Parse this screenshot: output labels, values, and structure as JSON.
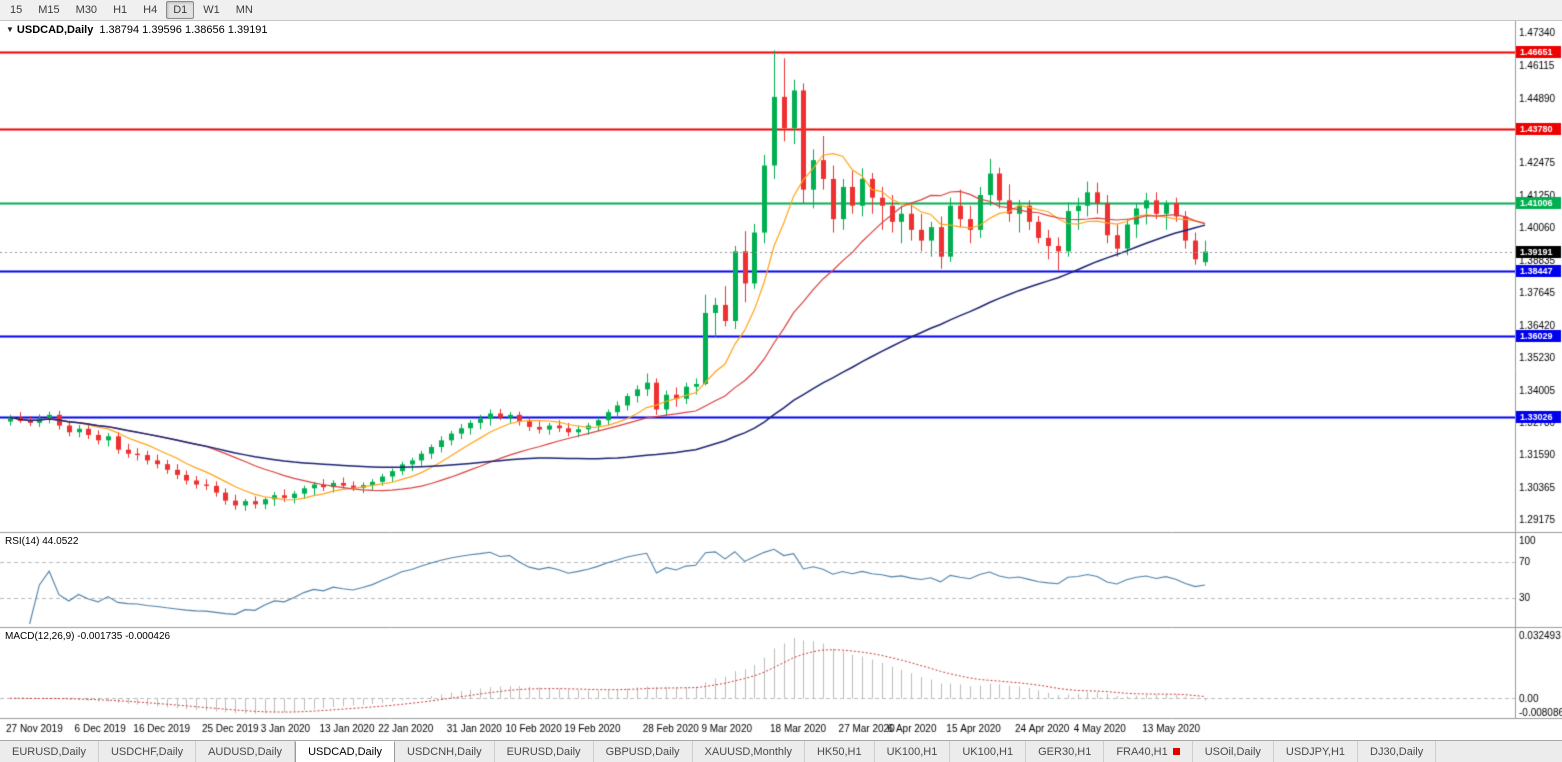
{
  "toolbar": {
    "timeframes": [
      "15",
      "M15",
      "M30",
      "H1",
      "H4",
      "D1",
      "W1",
      "MN"
    ],
    "active": "D1"
  },
  "title": {
    "collapse_icon": "▼",
    "symbol": "USDCAD,Daily",
    "ohlc": "1.38794 1.39596 1.38656 1.39191"
  },
  "indicators": {
    "rsi": {
      "label": "RSI(14) 44.0522",
      "levels": [
        70,
        30
      ],
      "axis_labels": [
        "100",
        "70",
        "30"
      ],
      "range": [
        0,
        100
      ]
    },
    "macd": {
      "label": "MACD(12,26,9) -0.001735 -0.000426",
      "axis_max": 0.032493,
      "axis_min": -0.008086,
      "axis_labels": [
        "0.032493",
        "0.00",
        "-0.008086"
      ]
    }
  },
  "price_axis": {
    "max": 1.4779,
    "min": 1.2873,
    "ticks": [
      "1.47340",
      "1.46115",
      "1.44890",
      "1.43665",
      "1.42475",
      "1.41250",
      "1.40060",
      "1.38835",
      "1.37645",
      "1.36420",
      "1.35230",
      "1.34005",
      "1.32780",
      "1.31590",
      "1.30365",
      "1.29175"
    ]
  },
  "levels": [
    {
      "price": 1.46651,
      "label": "1.46651",
      "color": "#ee0000"
    },
    {
      "price": 1.4378,
      "label": "1.43780",
      "color": "#ee0000"
    },
    {
      "price": 1.41006,
      "label": "1.41006",
      "color": "#00b050"
    },
    {
      "price": 1.38447,
      "label": "1.38447",
      "color": "#0000ee"
    },
    {
      "price": 1.36029,
      "label": "1.36029",
      "color": "#0000ee"
    },
    {
      "price": 1.33026,
      "label": "1.33026",
      "color": "#0000ee"
    }
  ],
  "current_price": {
    "value": 1.39191,
    "label": "1.39191",
    "badge_color": "#000000"
  },
  "colors": {
    "bull": "#00b050",
    "bear": "#ee3030",
    "ma_fast": "#ffa31a",
    "ma_mid": "#d94343",
    "ma_slow": "#1a2370",
    "rsi": "#4f81a8",
    "macd_hist": "#bdbdbd",
    "macd_signal": "#cc3a3a",
    "axis_text": "#000000",
    "grid": "#bbbbbb",
    "separator": "#9a9a9a"
  },
  "chart_data": {
    "type": "candlestick",
    "symbol": "USDCAD",
    "timeframe": "Daily",
    "ohlc": [
      [
        1.3285,
        1.331,
        1.327,
        1.33
      ],
      [
        1.33,
        1.332,
        1.328,
        1.3287
      ],
      [
        1.3287,
        1.3305,
        1.3268,
        1.328
      ],
      [
        1.328,
        1.3312,
        1.3265,
        1.3296
      ],
      [
        1.3296,
        1.3322,
        1.3278,
        1.331
      ],
      [
        1.331,
        1.3325,
        1.3255,
        1.327
      ],
      [
        1.327,
        1.3288,
        1.323,
        1.3245
      ],
      [
        1.3245,
        1.3272,
        1.3226,
        1.3258
      ],
      [
        1.3258,
        1.3272,
        1.322,
        1.3235
      ],
      [
        1.3235,
        1.3252,
        1.32,
        1.3215
      ],
      [
        1.3215,
        1.3242,
        1.3192,
        1.323
      ],
      [
        1.323,
        1.3246,
        1.3165,
        1.318
      ],
      [
        1.318,
        1.3202,
        1.315,
        1.3165
      ],
      [
        1.3165,
        1.3186,
        1.314,
        1.316
      ],
      [
        1.316,
        1.3176,
        1.3125,
        1.314
      ],
      [
        1.314,
        1.3162,
        1.311,
        1.3126
      ],
      [
        1.3126,
        1.3142,
        1.309,
        1.3105
      ],
      [
        1.3105,
        1.3126,
        1.307,
        1.3086
      ],
      [
        1.3086,
        1.3102,
        1.305,
        1.3065
      ],
      [
        1.3065,
        1.3082,
        1.3035,
        1.305
      ],
      [
        1.305,
        1.307,
        1.303,
        1.3045
      ],
      [
        1.3045,
        1.3062,
        1.3005,
        1.302
      ],
      [
        1.302,
        1.3036,
        1.2975,
        1.299
      ],
      [
        1.299,
        1.3012,
        1.2956,
        1.2972
      ],
      [
        1.2972,
        1.2996,
        1.2952,
        1.2988
      ],
      [
        1.2988,
        1.3006,
        1.296,
        1.2976
      ],
      [
        1.2976,
        1.3002,
        1.2958,
        1.2995
      ],
      [
        1.2995,
        1.3022,
        1.297,
        1.301
      ],
      [
        1.301,
        1.3032,
        1.2985,
        1.3
      ],
      [
        1.3,
        1.3026,
        1.298,
        1.3016
      ],
      [
        1.3016,
        1.3046,
        1.2996,
        1.3036
      ],
      [
        1.3036,
        1.306,
        1.301,
        1.305
      ],
      [
        1.305,
        1.307,
        1.3026,
        1.304
      ],
      [
        1.304,
        1.3066,
        1.302,
        1.3056
      ],
      [
        1.3056,
        1.3076,
        1.3036,
        1.3046
      ],
      [
        1.3046,
        1.3062,
        1.3026,
        1.3038
      ],
      [
        1.3038,
        1.3058,
        1.3018,
        1.3048
      ],
      [
        1.3048,
        1.307,
        1.303,
        1.306
      ],
      [
        1.306,
        1.309,
        1.3046,
        1.308
      ],
      [
        1.308,
        1.311,
        1.306,
        1.31
      ],
      [
        1.31,
        1.3135,
        1.3086,
        1.3125
      ],
      [
        1.3125,
        1.315,
        1.31,
        1.314
      ],
      [
        1.314,
        1.3176,
        1.312,
        1.3165
      ],
      [
        1.3165,
        1.32,
        1.3146,
        1.319
      ],
      [
        1.319,
        1.323,
        1.317,
        1.3215
      ],
      [
        1.3215,
        1.325,
        1.3196,
        1.324
      ],
      [
        1.324,
        1.3276,
        1.322,
        1.326
      ],
      [
        1.326,
        1.329,
        1.3236,
        1.328
      ],
      [
        1.328,
        1.331,
        1.3256,
        1.3295
      ],
      [
        1.3295,
        1.333,
        1.327,
        1.3315
      ],
      [
        1.3315,
        1.3332,
        1.329,
        1.33
      ],
      [
        1.33,
        1.332,
        1.328,
        1.331
      ],
      [
        1.331,
        1.3322,
        1.327,
        1.3286
      ],
      [
        1.3286,
        1.33,
        1.325,
        1.3265
      ],
      [
        1.3265,
        1.3286,
        1.324,
        1.3255
      ],
      [
        1.3255,
        1.328,
        1.3236,
        1.327
      ],
      [
        1.327,
        1.329,
        1.3246,
        1.326
      ],
      [
        1.326,
        1.328,
        1.323,
        1.3245
      ],
      [
        1.3245,
        1.327,
        1.3226,
        1.3256
      ],
      [
        1.3256,
        1.328,
        1.3236,
        1.327
      ],
      [
        1.327,
        1.33,
        1.325,
        1.329
      ],
      [
        1.329,
        1.333,
        1.327,
        1.332
      ],
      [
        1.332,
        1.336,
        1.33,
        1.3345
      ],
      [
        1.3345,
        1.339,
        1.3326,
        1.338
      ],
      [
        1.338,
        1.342,
        1.3356,
        1.3405
      ],
      [
        1.3405,
        1.3464,
        1.338,
        1.343
      ],
      [
        1.343,
        1.3446,
        1.331,
        1.333
      ],
      [
        1.333,
        1.34,
        1.3306,
        1.3385
      ],
      [
        1.3385,
        1.3412,
        1.334,
        1.337
      ],
      [
        1.337,
        1.343,
        1.335,
        1.3415
      ],
      [
        1.3415,
        1.3446,
        1.3386,
        1.3425
      ],
      [
        1.3425,
        1.3758,
        1.342,
        1.369
      ],
      [
        1.369,
        1.3746,
        1.36,
        1.372
      ],
      [
        1.372,
        1.379,
        1.364,
        1.366
      ],
      [
        1.366,
        1.394,
        1.363,
        1.392
      ],
      [
        1.392,
        1.3995,
        1.373,
        1.38
      ],
      [
        1.38,
        1.4022,
        1.378,
        1.399
      ],
      [
        1.399,
        1.428,
        1.395,
        1.424
      ],
      [
        1.424,
        1.4669,
        1.419,
        1.4496
      ],
      [
        1.4496,
        1.464,
        1.433,
        1.438
      ],
      [
        1.438,
        1.456,
        1.432,
        1.452
      ],
      [
        1.452,
        1.4546,
        1.41,
        1.415
      ],
      [
        1.415,
        1.43,
        1.408,
        1.426
      ],
      [
        1.426,
        1.435,
        1.415,
        1.419
      ],
      [
        1.419,
        1.424,
        1.399,
        1.404
      ],
      [
        1.404,
        1.419,
        1.4,
        1.416
      ],
      [
        1.416,
        1.422,
        1.406,
        1.409
      ],
      [
        1.409,
        1.423,
        1.405,
        1.419
      ],
      [
        1.419,
        1.4212,
        1.406,
        1.412
      ],
      [
        1.412,
        1.416,
        1.4,
        1.409
      ],
      [
        1.409,
        1.413,
        1.399,
        1.403
      ],
      [
        1.403,
        1.409,
        1.395,
        1.406
      ],
      [
        1.406,
        1.41,
        1.396,
        1.4
      ],
      [
        1.4,
        1.406,
        1.392,
        1.396
      ],
      [
        1.396,
        1.403,
        1.39,
        1.401
      ],
      [
        1.401,
        1.405,
        1.3855,
        1.39
      ],
      [
        1.39,
        1.412,
        1.388,
        1.409
      ],
      [
        1.409,
        1.415,
        1.401,
        1.404
      ],
      [
        1.404,
        1.409,
        1.395,
        1.4
      ],
      [
        1.4,
        1.416,
        1.397,
        1.413
      ],
      [
        1.413,
        1.4265,
        1.409,
        1.421
      ],
      [
        1.421,
        1.4232,
        1.408,
        1.411
      ],
      [
        1.411,
        1.417,
        1.403,
        1.406
      ],
      [
        1.406,
        1.4112,
        1.399,
        1.409
      ],
      [
        1.409,
        1.411,
        1.4,
        1.403
      ],
      [
        1.403,
        1.4052,
        1.395,
        1.397
      ],
      [
        1.397,
        1.4,
        1.389,
        1.394
      ],
      [
        1.394,
        1.3972,
        1.385,
        1.392
      ],
      [
        1.392,
        1.4102,
        1.39,
        1.407
      ],
      [
        1.407,
        1.412,
        1.4,
        1.409
      ],
      [
        1.409,
        1.418,
        1.405,
        1.414
      ],
      [
        1.414,
        1.4176,
        1.406,
        1.41
      ],
      [
        1.41,
        1.413,
        1.395,
        1.398
      ],
      [
        1.398,
        1.402,
        1.39,
        1.393
      ],
      [
        1.393,
        1.404,
        1.3905,
        1.402
      ],
      [
        1.402,
        1.41,
        1.397,
        1.408
      ],
      [
        1.408,
        1.4138,
        1.402,
        1.411
      ],
      [
        1.411,
        1.414,
        1.404,
        1.406
      ],
      [
        1.406,
        1.411,
        1.4,
        1.41
      ],
      [
        1.41,
        1.412,
        1.403,
        1.405
      ],
      [
        1.405,
        1.407,
        1.393,
        1.396
      ],
      [
        1.396,
        1.399,
        1.387,
        1.389
      ],
      [
        1.38794,
        1.39596,
        1.38656,
        1.39191
      ]
    ],
    "x_labels": [
      {
        "i": 0,
        "t": "27 Nov 2019"
      },
      {
        "i": 7,
        "t": "6 Dec 2019"
      },
      {
        "i": 13,
        "t": "16 Dec 2019"
      },
      {
        "i": 20,
        "t": "25 Dec 2019"
      },
      {
        "i": 26,
        "t": "3 Jan 2020"
      },
      {
        "i": 32,
        "t": "13 Jan 2020"
      },
      {
        "i": 38,
        "t": "22 Jan 2020"
      },
      {
        "i": 45,
        "t": "31 Jan 2020"
      },
      {
        "i": 51,
        "t": "10 Feb 2020"
      },
      {
        "i": 57,
        "t": "19 Feb 2020"
      },
      {
        "i": 65,
        "t": "28 Feb 2020"
      },
      {
        "i": 71,
        "t": "9 Mar 2020"
      },
      {
        "i": 78,
        "t": "18 Mar 2020"
      },
      {
        "i": 85,
        "t": "27 Mar 2020"
      },
      {
        "i": 90,
        "t": "6 Apr 2020"
      },
      {
        "i": 96,
        "t": "15 Apr 2020"
      },
      {
        "i": 103,
        "t": "24 Apr 2020"
      },
      {
        "i": 109,
        "t": "4 May 2020"
      },
      {
        "i": 116,
        "t": "13 May 2020"
      }
    ]
  },
  "tabs": {
    "active_index": 3,
    "items": [
      {
        "label": "EURUSD,Daily"
      },
      {
        "label": "USDCHF,Daily"
      },
      {
        "label": "AUDUSD,Daily"
      },
      {
        "label": "USDCAD,Daily"
      },
      {
        "label": "USDCNH,Daily"
      },
      {
        "label": "EURUSD,Daily"
      },
      {
        "label": "GBPUSD,Daily"
      },
      {
        "label": "XAUUSD,Monthly"
      },
      {
        "label": "HK50,H1"
      },
      {
        "label": "UK100,H1"
      },
      {
        "label": "UK100,H1"
      },
      {
        "label": "GER30,H1"
      },
      {
        "label": "FRA40,H1",
        "alert": true
      },
      {
        "label": "USOil,Daily"
      },
      {
        "label": "USDJPY,H1"
      },
      {
        "label": "DJ30,Daily"
      }
    ]
  }
}
